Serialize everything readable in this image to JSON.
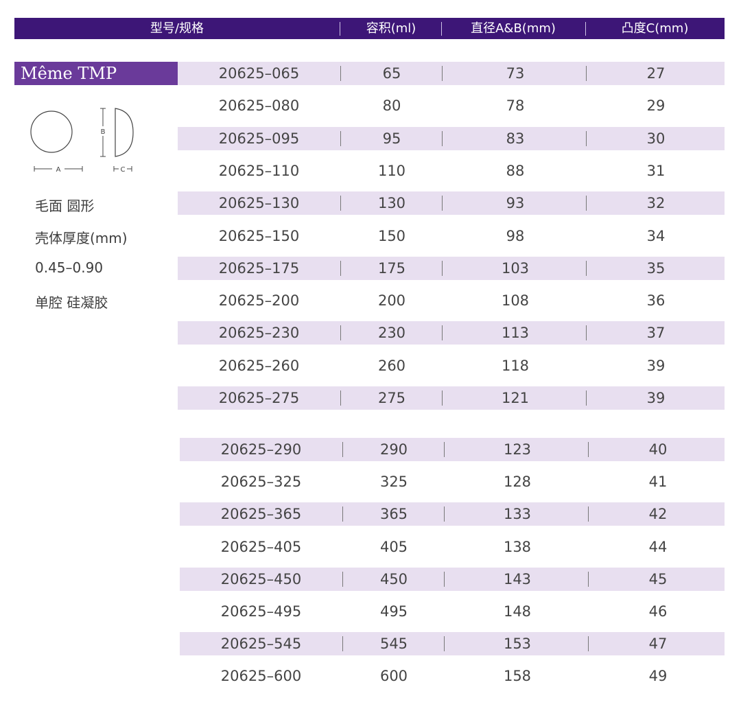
{
  "header": {
    "model_spec": "型号/规格",
    "volume": "容积(ml)",
    "diameter": "直径A&B(mm)",
    "projection": "凸度C(mm)"
  },
  "brand": "Même TMP",
  "diagram": {
    "label_a": "A",
    "label_b": "B",
    "label_c": "C"
  },
  "side_notes": [
    "毛面 圆形",
    "壳体厚度(mm)",
    "0.45–0.90",
    "单腔 硅凝胶"
  ],
  "table_group_1": [
    {
      "model": "20625–065",
      "volume": "65",
      "diameter": "73",
      "projection": "27"
    },
    {
      "model": "20625–080",
      "volume": "80",
      "diameter": "78",
      "projection": "29"
    },
    {
      "model": "20625–095",
      "volume": "95",
      "diameter": "83",
      "projection": "30"
    },
    {
      "model": "20625–110",
      "volume": "110",
      "diameter": "88",
      "projection": "31"
    },
    {
      "model": "20625–130",
      "volume": "130",
      "diameter": "93",
      "projection": "32"
    },
    {
      "model": "20625–150",
      "volume": "150",
      "diameter": "98",
      "projection": "34"
    },
    {
      "model": "20625–175",
      "volume": "175",
      "diameter": "103",
      "projection": "35"
    },
    {
      "model": "20625–200",
      "volume": "200",
      "diameter": "108",
      "projection": "36"
    },
    {
      "model": "20625–230",
      "volume": "230",
      "diameter": "113",
      "projection": "37"
    },
    {
      "model": "20625–260",
      "volume": "260",
      "diameter": "118",
      "projection": "39"
    },
    {
      "model": "20625–275",
      "volume": "275",
      "diameter": "121",
      "projection": "39"
    }
  ],
  "table_group_2": [
    {
      "model": "20625–290",
      "volume": "290",
      "diameter": "123",
      "projection": "40"
    },
    {
      "model": "20625–325",
      "volume": "325",
      "diameter": "128",
      "projection": "41"
    },
    {
      "model": "20625–365",
      "volume": "365",
      "diameter": "133",
      "projection": "42"
    },
    {
      "model": "20625–405",
      "volume": "405",
      "diameter": "138",
      "projection": "44"
    },
    {
      "model": "20625–450",
      "volume": "450",
      "diameter": "143",
      "projection": "45"
    },
    {
      "model": "20625–495",
      "volume": "495",
      "diameter": "148",
      "projection": "46"
    },
    {
      "model": "20625–545",
      "volume": "545",
      "diameter": "153",
      "projection": "47"
    },
    {
      "model": "20625–600",
      "volume": "600",
      "diameter": "158",
      "projection": "49"
    }
  ],
  "colors": {
    "header_bg": "#3d1677",
    "brand_bg": "#6a3a9a",
    "row_shade": "#e8dff0"
  }
}
